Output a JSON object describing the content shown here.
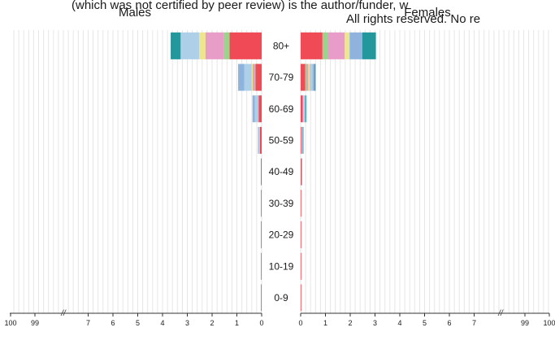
{
  "page": {
    "overlay_line1": "(which was not certified by peer review) is the author/funder, w",
    "overlay_line2": "All rights reserved. No re"
  },
  "chart_data": {
    "type": "bar",
    "layout": "population-pyramid",
    "panels": [
      {
        "id": "males",
        "title": "Males"
      },
      {
        "id": "females",
        "title": "Females"
      }
    ],
    "categories": [
      "80+",
      "70-79",
      "60-69",
      "50-59",
      "40-49",
      "30-39",
      "20-29",
      "10-19",
      "0-9"
    ],
    "x_axis": {
      "left_ticks": [
        "100",
        "99",
        "7",
        "6",
        "5",
        "4",
        "3",
        "2",
        "1",
        "0"
      ],
      "right_ticks": [
        "0",
        "1",
        "2",
        "3",
        "4",
        "5",
        "6",
        "7",
        "99",
        "100"
      ],
      "break_marker": "//"
    },
    "series_colors": [
      "#ef4a55",
      "#9ad48c",
      "#e89cc8",
      "#efe58c",
      "#aecfe8",
      "#8eb4de",
      "#22979c"
    ],
    "series": [
      {
        "values_males": [
          1.3,
          0.25,
          0.12,
          0.07,
          0.03,
          0.02,
          0.02,
          0.02,
          0.02
        ],
        "values_females": [
          0.88,
          0.18,
          0.08,
          0.03,
          0.01,
          0.01,
          0.01,
          0.01,
          0.01
        ]
      },
      {
        "values_males": [
          0.22,
          0.03,
          0.0,
          0.0,
          0.0,
          0.0,
          0.0,
          0.0,
          0.0
        ],
        "values_females": [
          0.22,
          0.05,
          0.0,
          0.0,
          0.0,
          0.0,
          0.0,
          0.0,
          0.0
        ]
      },
      {
        "values_males": [
          0.75,
          0.08,
          0.03,
          0.0,
          0.0,
          0.0,
          0.0,
          0.0,
          0.0
        ],
        "values_females": [
          0.68,
          0.08,
          0.02,
          0.0,
          0.0,
          0.0,
          0.0,
          0.0,
          0.0
        ]
      },
      {
        "values_males": [
          0.25,
          0.04,
          0.0,
          0.0,
          0.0,
          0.0,
          0.0,
          0.0,
          0.0
        ],
        "values_females": [
          0.18,
          0.05,
          0.0,
          0.0,
          0.0,
          0.0,
          0.0,
          0.0,
          0.0
        ]
      },
      {
        "values_males": [
          0.75,
          0.3,
          0.12,
          0.05,
          0.0,
          0.0,
          0.0,
          0.0,
          0.0
        ],
        "values_females": [
          0.02,
          0.12,
          0.05,
          0.02,
          0.0,
          0.0,
          0.0,
          0.0,
          0.0
        ]
      },
      {
        "values_males": [
          0.0,
          0.25,
          0.1,
          0.03,
          0.0,
          0.0,
          0.0,
          0.0,
          0.0
        ],
        "values_females": [
          0.5,
          0.08,
          0.05,
          0.03,
          0.0,
          0.0,
          0.0,
          0.0,
          0.0
        ]
      },
      {
        "values_males": [
          0.4,
          0.0,
          0.0,
          0.0,
          0.0,
          0.0,
          0.0,
          0.0,
          0.0
        ],
        "values_females": [
          0.55,
          0.04,
          0.02,
          0.02,
          0.02,
          0.0,
          0.0,
          0.0,
          0.0
        ]
      }
    ]
  }
}
